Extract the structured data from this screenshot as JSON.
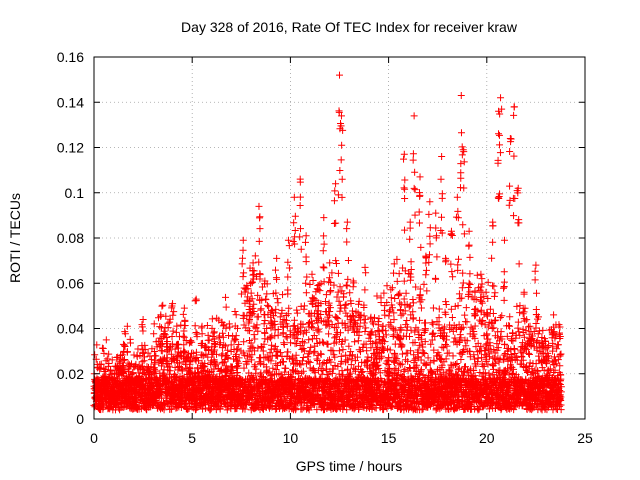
{
  "chart_data": {
    "type": "scatter",
    "title": "Day 328 of 2016, Rate Of TEC Index for receiver kraw",
    "xlabel": "GPS time / hours",
    "ylabel": "ROTI / TECUs",
    "xlim": [
      0,
      25
    ],
    "ylim": [
      0,
      0.16
    ],
    "xticks": [
      0,
      5,
      10,
      15,
      20,
      25
    ],
    "xtick_labels": [
      "0",
      "5",
      "10",
      "15",
      "20",
      "25"
    ],
    "yticks": [
      0,
      0.02,
      0.04,
      0.06,
      0.08,
      0.1,
      0.12,
      0.14,
      0.16
    ],
    "ytick_labels": [
      "0",
      "0.02",
      "0.04",
      "0.06",
      "0.08",
      "0.1",
      "0.12",
      "0.14",
      "0.16"
    ],
    "grid": true,
    "marker": "plus",
    "marker_color": "#ff0000",
    "data_range_hours": [
      0.0,
      23.8
    ],
    "series": [
      {
        "points": [
          [
            0.2,
            0.015
          ],
          [
            0.5,
            0.019
          ],
          [
            0.8,
            0.011
          ],
          [
            1.1,
            0.017
          ],
          [
            1.5,
            0.033
          ],
          [
            1.8,
            0.024
          ],
          [
            2.1,
            0.013
          ],
          [
            2.5,
            0.044
          ],
          [
            2.8,
            0.021
          ],
          [
            3.1,
            0.028
          ],
          [
            3.4,
            0.046
          ],
          [
            3.7,
            0.036
          ],
          [
            4.0,
            0.051
          ],
          [
            4.3,
            0.033
          ],
          [
            4.6,
            0.049
          ],
          [
            4.9,
            0.026
          ],
          [
            5.2,
            0.053
          ],
          [
            5.5,
            0.041
          ],
          [
            5.8,
            0.021
          ],
          [
            6.1,
            0.038
          ],
          [
            6.4,
            0.017
          ],
          [
            6.7,
            0.028
          ],
          [
            7.0,
            0.023
          ],
          [
            7.3,
            0.031
          ],
          [
            7.6,
            0.079
          ],
          [
            7.9,
            0.052
          ],
          [
            8.1,
            0.069
          ],
          [
            8.4,
            0.094
          ],
          [
            8.7,
            0.061
          ],
          [
            9.0,
            0.045
          ],
          [
            9.3,
            0.071
          ],
          [
            9.6,
            0.055
          ],
          [
            9.9,
            0.079
          ],
          [
            10.2,
            0.098
          ],
          [
            10.5,
            0.106
          ],
          [
            10.8,
            0.081
          ],
          [
            11.1,
            0.064
          ],
          [
            11.4,
            0.059
          ],
          [
            11.7,
            0.089
          ],
          [
            12.0,
            0.069
          ],
          [
            12.3,
            0.104
          ],
          [
            12.5,
            0.152
          ],
          [
            12.6,
            0.134
          ],
          [
            12.9,
            0.087
          ],
          [
            13.2,
            0.061
          ],
          [
            13.5,
            0.052
          ],
          [
            13.8,
            0.067
          ],
          [
            14.1,
            0.045
          ],
          [
            14.4,
            0.034
          ],
          [
            14.7,
            0.041
          ],
          [
            15.0,
            0.027
          ],
          [
            15.3,
            0.029
          ],
          [
            15.6,
            0.048
          ],
          [
            15.8,
            0.117
          ],
          [
            16.1,
            0.087
          ],
          [
            16.3,
            0.134
          ],
          [
            16.6,
            0.107
          ],
          [
            16.9,
            0.072
          ],
          [
            17.1,
            0.096
          ],
          [
            17.4,
            0.091
          ],
          [
            17.7,
            0.116
          ],
          [
            17.9,
            0.071
          ],
          [
            18.2,
            0.083
          ],
          [
            18.5,
            0.098
          ],
          [
            18.7,
            0.143
          ],
          [
            18.8,
            0.119
          ],
          [
            19.1,
            0.083
          ],
          [
            19.4,
            0.056
          ],
          [
            19.7,
            0.064
          ],
          [
            20.0,
            0.047
          ],
          [
            20.3,
            0.087
          ],
          [
            20.6,
            0.136
          ],
          [
            20.7,
            0.142
          ],
          [
            20.9,
            0.079
          ],
          [
            21.2,
            0.124
          ],
          [
            21.4,
            0.138
          ],
          [
            21.6,
            0.102
          ],
          [
            21.9,
            0.056
          ],
          [
            22.2,
            0.041
          ],
          [
            22.5,
            0.068
          ],
          [
            22.8,
            0.034
          ],
          [
            23.1,
            0.029
          ],
          [
            23.4,
            0.046
          ],
          [
            23.7,
            0.038
          ],
          [
            0.3,
            0.006
          ],
          [
            1.0,
            0.008
          ],
          [
            2.0,
            0.007
          ],
          [
            3.0,
            0.009
          ],
          [
            4.0,
            0.011
          ],
          [
            5.0,
            0.012
          ],
          [
            6.0,
            0.01
          ],
          [
            7.0,
            0.012
          ],
          [
            8.0,
            0.014
          ],
          [
            9.0,
            0.013
          ],
          [
            10.0,
            0.015
          ],
          [
            11.0,
            0.012
          ],
          [
            12.0,
            0.014
          ],
          [
            13.0,
            0.011
          ],
          [
            14.0,
            0.013
          ],
          [
            15.0,
            0.01
          ],
          [
            16.0,
            0.012
          ],
          [
            17.0,
            0.009
          ],
          [
            18.0,
            0.011
          ],
          [
            19.0,
            0.008
          ],
          [
            20.0,
            0.01
          ],
          [
            21.0,
            0.012
          ],
          [
            22.0,
            0.009
          ],
          [
            23.0,
            0.011
          ]
        ]
      }
    ]
  }
}
